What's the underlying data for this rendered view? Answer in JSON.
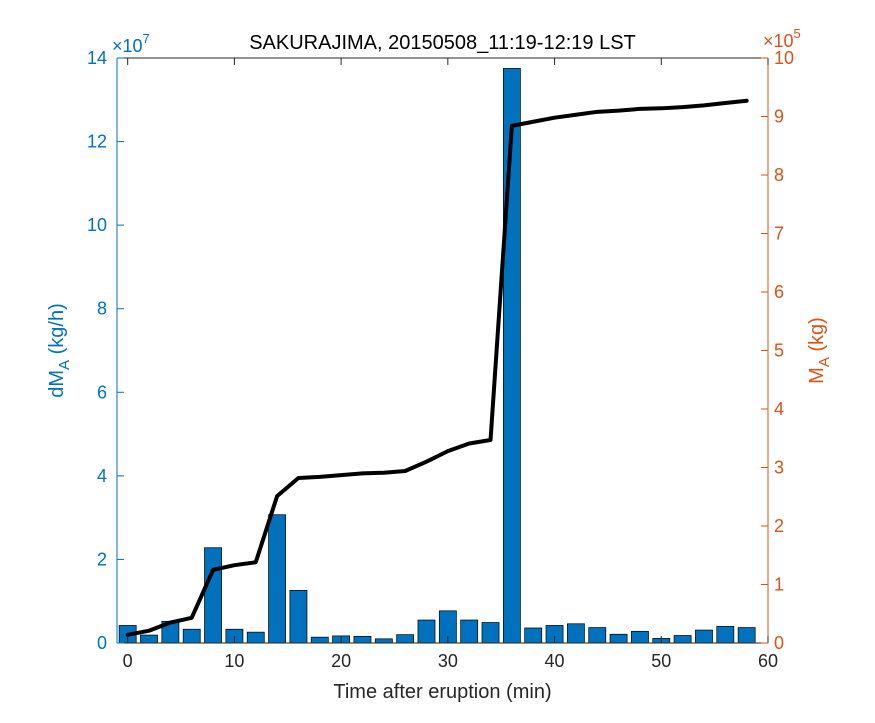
{
  "chart_data": {
    "type": "bar",
    "title": "SAKURAJIMA, 20150508_11:19-12:19 LST",
    "xlabel": "Time after eruption (min)",
    "ylabel_left": {
      "main": "dM",
      "sub": "A",
      "unit": " (kg/h)"
    },
    "ylabel_right": {
      "main": "M",
      "sub": "A",
      "unit": " (kg)"
    },
    "left_axis": {
      "ylim": [
        0,
        14
      ],
      "ticks": [
        0,
        2,
        4,
        6,
        8,
        10,
        12,
        14
      ],
      "tick_labels": [
        "0",
        "2",
        "4",
        "6",
        "8",
        "10",
        "12",
        "14"
      ],
      "multiplier": {
        "base": "×10",
        "exp": "7"
      },
      "color": "#0072BD"
    },
    "right_axis": {
      "ylim": [
        0,
        10
      ],
      "ticks": [
        0,
        1,
        2,
        3,
        4,
        5,
        6,
        7,
        8,
        9,
        10
      ],
      "tick_labels": [
        "0",
        "1",
        "2",
        "3",
        "4",
        "5",
        "6",
        "7",
        "8",
        "9",
        "10"
      ],
      "multiplier": {
        "base": "×10",
        "exp": "5"
      },
      "color": "#D95319"
    },
    "x_axis": {
      "xlim": [
        -1,
        60
      ],
      "ticks": [
        0,
        10,
        20,
        30,
        40,
        50,
        60
      ],
      "tick_labels": [
        "0",
        "10",
        "20",
        "30",
        "40",
        "50",
        "60"
      ]
    },
    "series": [
      {
        "kind": "bar",
        "axis": "left",
        "color": "#0072BD",
        "x": [
          0,
          2,
          4,
          6,
          8,
          10,
          12,
          14,
          16,
          18,
          20,
          22,
          24,
          26,
          28,
          30,
          32,
          34,
          36,
          38,
          40,
          42,
          44,
          46,
          48,
          50,
          52,
          54,
          56,
          58
        ],
        "values": [
          0.42,
          0.19,
          0.52,
          0.33,
          2.28,
          0.33,
          0.26,
          3.07,
          1.26,
          0.14,
          0.17,
          0.16,
          0.1,
          0.2,
          0.55,
          0.77,
          0.55,
          0.49,
          13.75,
          0.36,
          0.42,
          0.46,
          0.37,
          0.21,
          0.28,
          0.11,
          0.18,
          0.31,
          0.4,
          0.37
        ]
      },
      {
        "kind": "line",
        "axis": "right",
        "color": "#000000",
        "x": [
          0,
          2,
          4,
          6,
          8,
          10,
          12,
          14,
          16,
          18,
          20,
          22,
          24,
          26,
          28,
          30,
          32,
          34,
          36,
          38,
          40,
          42,
          44,
          46,
          48,
          50,
          52,
          54,
          56,
          58
        ],
        "values": [
          0.14,
          0.21,
          0.35,
          0.43,
          1.25,
          1.33,
          1.38,
          2.51,
          2.82,
          2.84,
          2.87,
          2.9,
          2.91,
          2.94,
          3.1,
          3.28,
          3.41,
          3.47,
          8.84,
          8.91,
          8.98,
          9.03,
          9.08,
          9.1,
          9.13,
          9.14,
          9.16,
          9.19,
          9.23,
          9.27
        ]
      }
    ],
    "grid": false,
    "legend": "none"
  }
}
